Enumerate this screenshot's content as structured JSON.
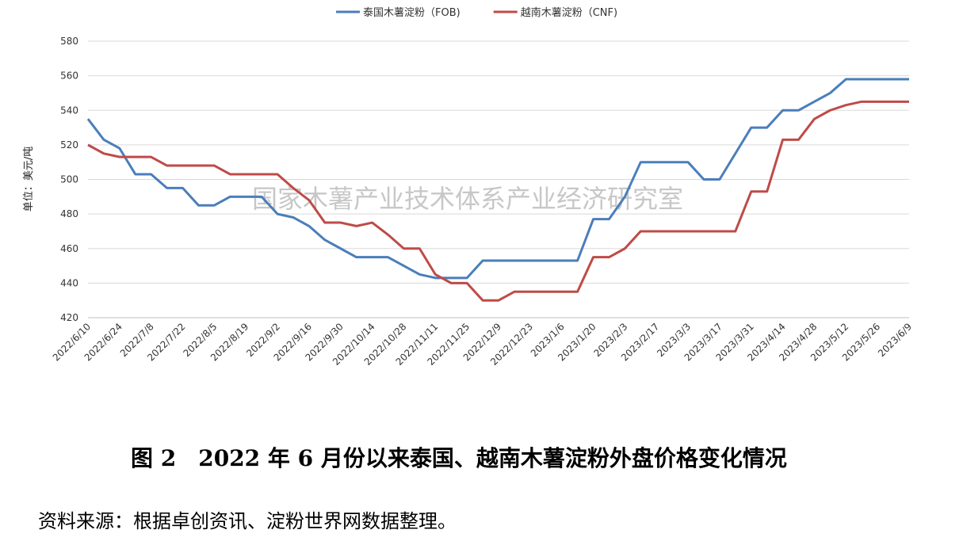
{
  "chart_data": {
    "type": "line",
    "y_label": "单位：美元/吨",
    "watermark": "国家木薯产业技术体系产业经济研究室",
    "categories": [
      "2022/6/10",
      null,
      "2022/6/24",
      null,
      "2022/7/8",
      null,
      "2022/7/22",
      null,
      "2022/8/5",
      null,
      "2022/8/19",
      null,
      "2022/9/2",
      null,
      "2022/9/16",
      null,
      "2022/9/30",
      null,
      "2022/10/14",
      null,
      "2022/10/28",
      null,
      "2022/11/11",
      null,
      "2022/11/25",
      null,
      "2022/12/9",
      null,
      "2022/12/23",
      null,
      "2023/1/6",
      null,
      "2023/1/20",
      null,
      "2023/2/3",
      null,
      "2023/2/17",
      null,
      "2023/3/3",
      null,
      "2023/3/17",
      null,
      "2023/3/31",
      null,
      "2023/4/14",
      null,
      "2023/4/28",
      null,
      "2023/5/12",
      null,
      "2023/5/26",
      null,
      "2023/6/9"
    ],
    "series": [
      {
        "name": "泰国木薯淀粉（FOB)",
        "color": "#4a7ebb",
        "values": [
          535,
          523,
          518,
          503,
          503,
          495,
          495,
          485,
          485,
          490,
          490,
          490,
          480,
          478,
          473,
          465,
          460,
          455,
          455,
          455,
          450,
          445,
          443,
          443,
          443,
          453,
          453,
          453,
          453,
          453,
          453,
          453,
          477,
          477,
          490,
          510,
          510,
          510,
          510,
          500,
          500,
          515,
          530,
          530,
          540,
          540,
          545,
          550,
          558,
          558,
          558,
          558,
          558
        ]
      },
      {
        "name": "越南木薯淀粉（CNF)",
        "color": "#be4b48",
        "values": [
          520,
          515,
          513,
          513,
          513,
          508,
          508,
          508,
          508,
          503,
          503,
          503,
          503,
          495,
          488,
          475,
          475,
          473,
          475,
          468,
          460,
          460,
          445,
          440,
          440,
          430,
          430,
          435,
          435,
          435,
          435,
          435,
          455,
          455,
          460,
          470,
          470,
          470,
          470,
          470,
          470,
          470,
          493,
          493,
          523,
          523,
          535,
          540,
          543,
          545,
          545,
          545,
          545
        ]
      }
    ],
    "ylim": [
      420,
      580
    ],
    "yticks": [
      420,
      440,
      460,
      480,
      500,
      520,
      540,
      560,
      580
    ],
    "grid": true,
    "legend": "top",
    "caption": "图 2　2022 年 6 月份以来泰国、越南木薯淀粉外盘价格变化情况",
    "source": "资料来源：根据卓创资讯、淀粉世界网数据整理。"
  }
}
